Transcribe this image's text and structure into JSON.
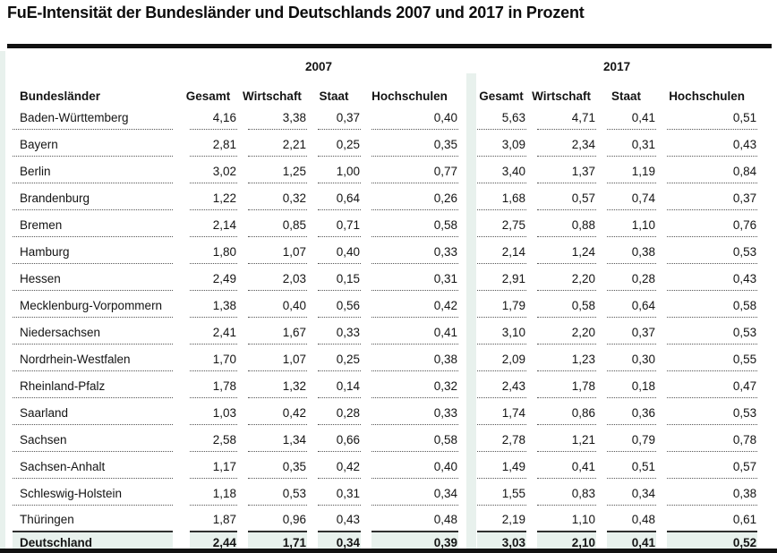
{
  "title": "FuE-Intensität der Bundesländer und Deutschlands 2007 und 2017 in Prozent",
  "colors": {
    "highlight": "#e8f1ed",
    "rule": "#111111",
    "dotted_line": "#555555",
    "text": "#141414"
  },
  "chart_data": {
    "type": "table",
    "title": "FuE-Intensität der Bundesländer und Deutschlands 2007 und 2017 in Prozent",
    "unit": "Prozent",
    "decimal_separator": ",",
    "row_header": "Bundesländer",
    "column_groups": [
      "2007",
      "2017"
    ],
    "sub_columns": [
      "Gesamt",
      "Wirtschaft",
      "Staat",
      "Hochschulen"
    ],
    "rows": [
      {
        "name": "Baden-Württemberg",
        "values_2007": [
          4.16,
          3.38,
          0.37,
          0.4
        ],
        "values_2017": [
          5.63,
          4.71,
          0.41,
          0.51
        ]
      },
      {
        "name": "Bayern",
        "values_2007": [
          2.81,
          2.21,
          0.25,
          0.35
        ],
        "values_2017": [
          3.09,
          2.34,
          0.31,
          0.43
        ]
      },
      {
        "name": "Berlin",
        "values_2007": [
          3.02,
          1.25,
          1.0,
          0.77
        ],
        "values_2017": [
          3.4,
          1.37,
          1.19,
          0.84
        ]
      },
      {
        "name": "Brandenburg",
        "values_2007": [
          1.22,
          0.32,
          0.64,
          0.26
        ],
        "values_2017": [
          1.68,
          0.57,
          0.74,
          0.37
        ]
      },
      {
        "name": "Bremen",
        "values_2007": [
          2.14,
          0.85,
          0.71,
          0.58
        ],
        "values_2017": [
          2.75,
          0.88,
          1.1,
          0.76
        ]
      },
      {
        "name": "Hamburg",
        "values_2007": [
          1.8,
          1.07,
          0.4,
          0.33
        ],
        "values_2017": [
          2.14,
          1.24,
          0.38,
          0.53
        ]
      },
      {
        "name": "Hessen",
        "values_2007": [
          2.49,
          2.03,
          0.15,
          0.31
        ],
        "values_2017": [
          2.91,
          2.2,
          0.28,
          0.43
        ]
      },
      {
        "name": "Mecklenburg-Vorpommern",
        "values_2007": [
          1.38,
          0.4,
          0.56,
          0.42
        ],
        "values_2017": [
          1.79,
          0.58,
          0.64,
          0.58
        ]
      },
      {
        "name": "Niedersachsen",
        "values_2007": [
          2.41,
          1.67,
          0.33,
          0.41
        ],
        "values_2017": [
          3.1,
          2.2,
          0.37,
          0.53
        ]
      },
      {
        "name": "Nordrhein-Westfalen",
        "values_2007": [
          1.7,
          1.07,
          0.25,
          0.38
        ],
        "values_2017": [
          2.09,
          1.23,
          0.3,
          0.55
        ]
      },
      {
        "name": "Rheinland-Pfalz",
        "values_2007": [
          1.78,
          1.32,
          0.14,
          0.32
        ],
        "values_2017": [
          2.43,
          1.78,
          0.18,
          0.47
        ]
      },
      {
        "name": "Saarland",
        "values_2007": [
          1.03,
          0.42,
          0.28,
          0.33
        ],
        "values_2017": [
          1.74,
          0.86,
          0.36,
          0.53
        ]
      },
      {
        "name": "Sachsen",
        "values_2007": [
          2.58,
          1.34,
          0.66,
          0.58
        ],
        "values_2017": [
          2.78,
          1.21,
          0.79,
          0.78
        ]
      },
      {
        "name": "Sachsen-Anhalt",
        "values_2007": [
          1.17,
          0.35,
          0.42,
          0.4
        ],
        "values_2017": [
          1.49,
          0.41,
          0.51,
          0.57
        ]
      },
      {
        "name": "Schleswig-Holstein",
        "values_2007": [
          1.18,
          0.53,
          0.31,
          0.34
        ],
        "values_2017": [
          1.55,
          0.83,
          0.34,
          0.38
        ]
      },
      {
        "name": "Thüringen",
        "values_2007": [
          1.87,
          0.96,
          0.43,
          0.48
        ],
        "values_2017": [
          2.19,
          1.1,
          0.48,
          0.61
        ]
      }
    ],
    "summary": {
      "name": "Deutschland",
      "values_2007": [
        2.44,
        1.71,
        0.34,
        0.39
      ],
      "values_2017": [
        3.03,
        2.1,
        0.41,
        0.52
      ]
    }
  }
}
